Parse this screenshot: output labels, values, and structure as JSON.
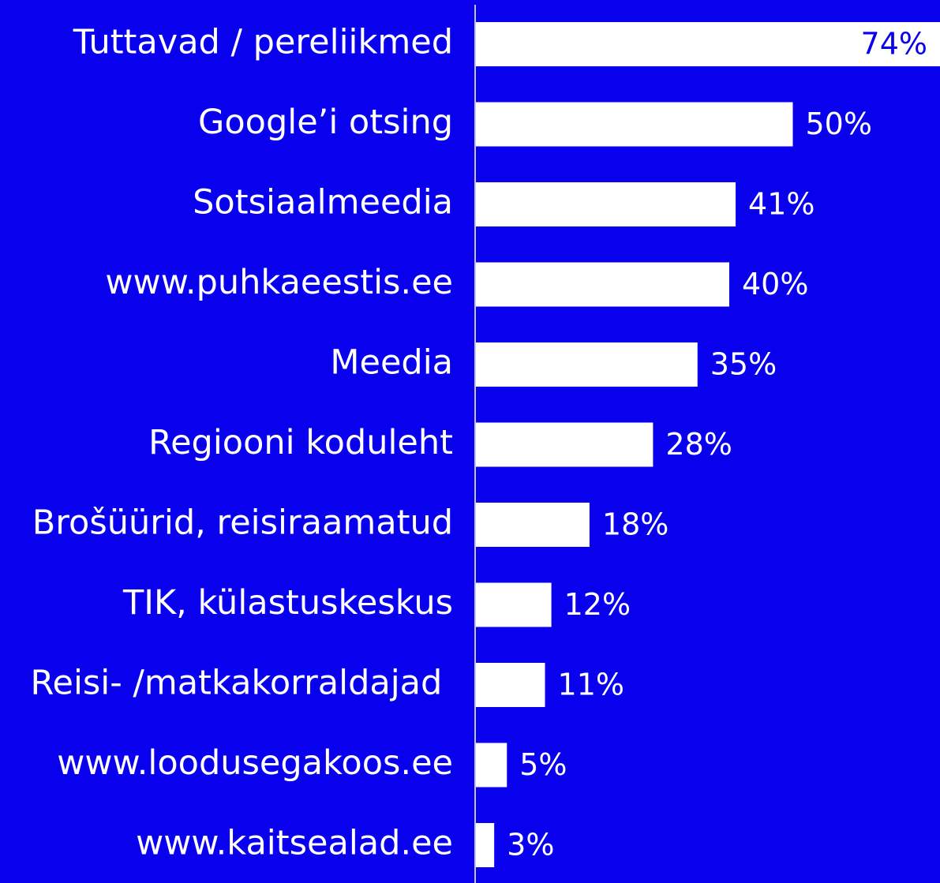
{
  "chart_data": {
    "type": "barh",
    "categories": [
      "Tuttavad / pereliikmed",
      "Google’i otsing",
      "Sotsiaalmeedia",
      "www.puhkaeestis.ee",
      "Meedia",
      "Regiooni koduleht",
      "Brošüürid, reisiraamatud",
      "TIK, külastuskeskus",
      "Reisi- /matkakorraldajad ",
      "www.loodusegakoos.ee",
      "www.kaitsealad.ee"
    ],
    "values": [
      74,
      50,
      41,
      40,
      35,
      28,
      18,
      12,
      11,
      5,
      3
    ],
    "value_labels": [
      "74%",
      "50%",
      "41%",
      "40%",
      "35%",
      "28%",
      "18%",
      "12%",
      "11%",
      "5%",
      "3%"
    ],
    "color": "#ffffff",
    "background": "#0900ee"
  }
}
